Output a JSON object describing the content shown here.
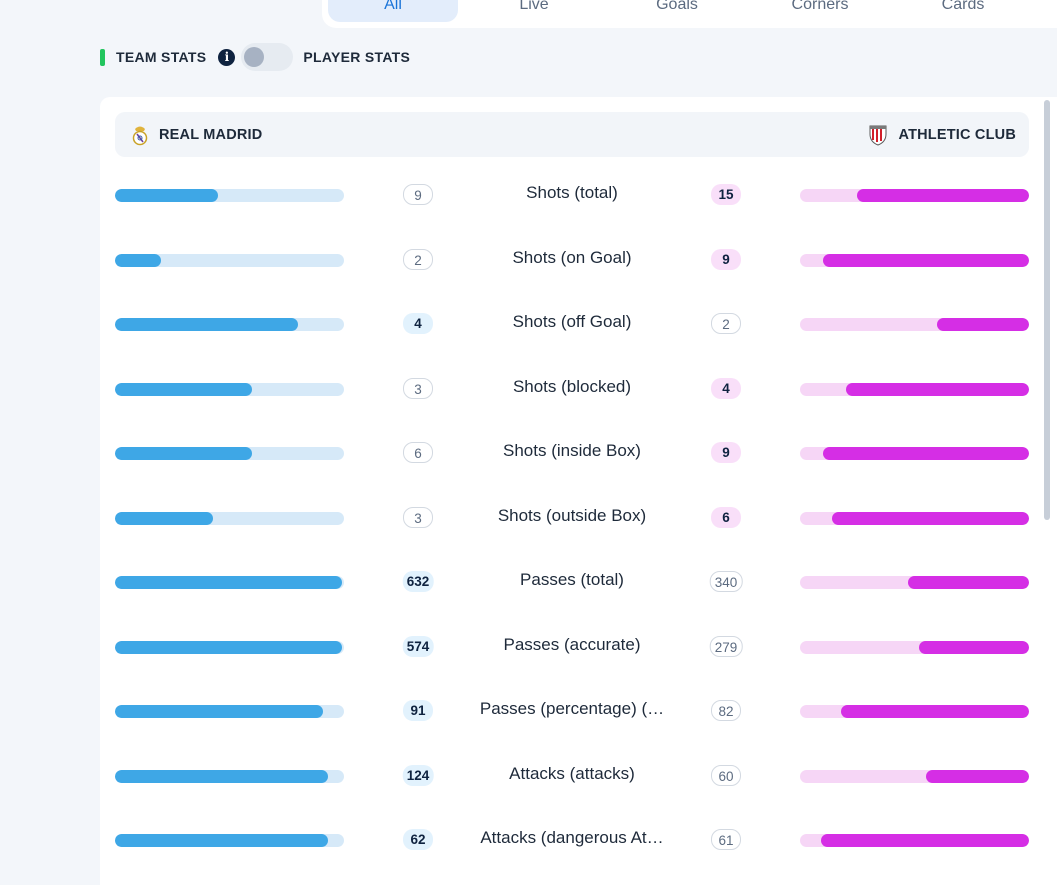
{
  "tabs": [
    {
      "label": "All",
      "active": true
    },
    {
      "label": "Live",
      "active": false
    },
    {
      "label": "Goals",
      "active": false
    },
    {
      "label": "Corners",
      "active": false
    },
    {
      "label": "Cards",
      "active": false
    }
  ],
  "toggle": {
    "team_stats_label": "TEAM STATS",
    "info_glyph": "i",
    "player_stats_label": "PLAYER STATS",
    "is_on": false
  },
  "teams": {
    "home": {
      "name": "REAL MADRID",
      "color": "#3ea7e6"
    },
    "away": {
      "name": "ATHLETIC CLUB",
      "color": "#d52ee5"
    }
  },
  "stats": [
    {
      "label": "Shots (total)",
      "home": "9",
      "away": "15",
      "home_fill": 0.45,
      "away_fill": 0.75,
      "winner": "away"
    },
    {
      "label": "Shots (on Goal)",
      "home": "2",
      "away": "9",
      "home_fill": 0.2,
      "away_fill": 0.9,
      "winner": "away"
    },
    {
      "label": "Shots (off Goal)",
      "home": "4",
      "away": "2",
      "home_fill": 0.8,
      "away_fill": 0.4,
      "winner": "home"
    },
    {
      "label": "Shots (blocked)",
      "home": "3",
      "away": "4",
      "home_fill": 0.6,
      "away_fill": 0.8,
      "winner": "away"
    },
    {
      "label": "Shots (inside Box)",
      "home": "6",
      "away": "9",
      "home_fill": 0.6,
      "away_fill": 0.9,
      "winner": "away"
    },
    {
      "label": "Shots (outside Box)",
      "home": "3",
      "away": "6",
      "home_fill": 0.43,
      "away_fill": 0.86,
      "winner": "away"
    },
    {
      "label": "Passes (total)",
      "home": "632",
      "away": "340",
      "home_fill": 0.99,
      "away_fill": 0.53,
      "winner": "home"
    },
    {
      "label": "Passes (accurate)",
      "home": "574",
      "away": "279",
      "home_fill": 0.99,
      "away_fill": 0.48,
      "winner": "home"
    },
    {
      "label": "Passes (percentage) (…",
      "home": "91",
      "away": "82",
      "home_fill": 0.91,
      "away_fill": 0.82,
      "winner": "home"
    },
    {
      "label": "Attacks (attacks)",
      "home": "124",
      "away": "60",
      "home_fill": 0.93,
      "away_fill": 0.45,
      "winner": "home"
    },
    {
      "label": "Attacks (dangerous At…",
      "home": "62",
      "away": "61",
      "home_fill": 0.93,
      "away_fill": 0.91,
      "winner": "home"
    }
  ]
}
